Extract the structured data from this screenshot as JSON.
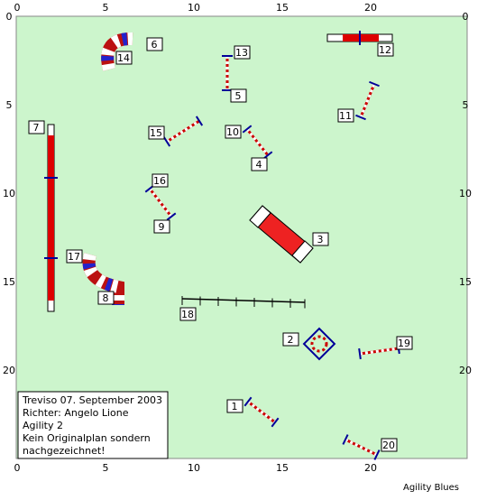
{
  "axes": {
    "x_ticks": [
      0,
      5,
      10,
      15,
      20
    ],
    "y_ticks": [
      0,
      5,
      10,
      15,
      20
    ]
  },
  "obstacles": [
    {
      "label": "1"
    },
    {
      "label": "2"
    },
    {
      "label": "3"
    },
    {
      "label": "4"
    },
    {
      "label": "5"
    },
    {
      "label": "6"
    },
    {
      "label": "7"
    },
    {
      "label": "8"
    },
    {
      "label": "9"
    },
    {
      "label": "10"
    },
    {
      "label": "11"
    },
    {
      "label": "12"
    },
    {
      "label": "13"
    },
    {
      "label": "14"
    },
    {
      "label": "15"
    },
    {
      "label": "16"
    },
    {
      "label": "17"
    },
    {
      "label": "18"
    },
    {
      "label": "19"
    },
    {
      "label": "20"
    }
  ],
  "info": {
    "lines": [
      "Treviso 07. September 2003",
      "Richter: Angelo Lione",
      "Agility 2",
      "Kein Originalplan sondern",
      "nachgezeichnet!"
    ]
  },
  "credit": "Agility Blues"
}
